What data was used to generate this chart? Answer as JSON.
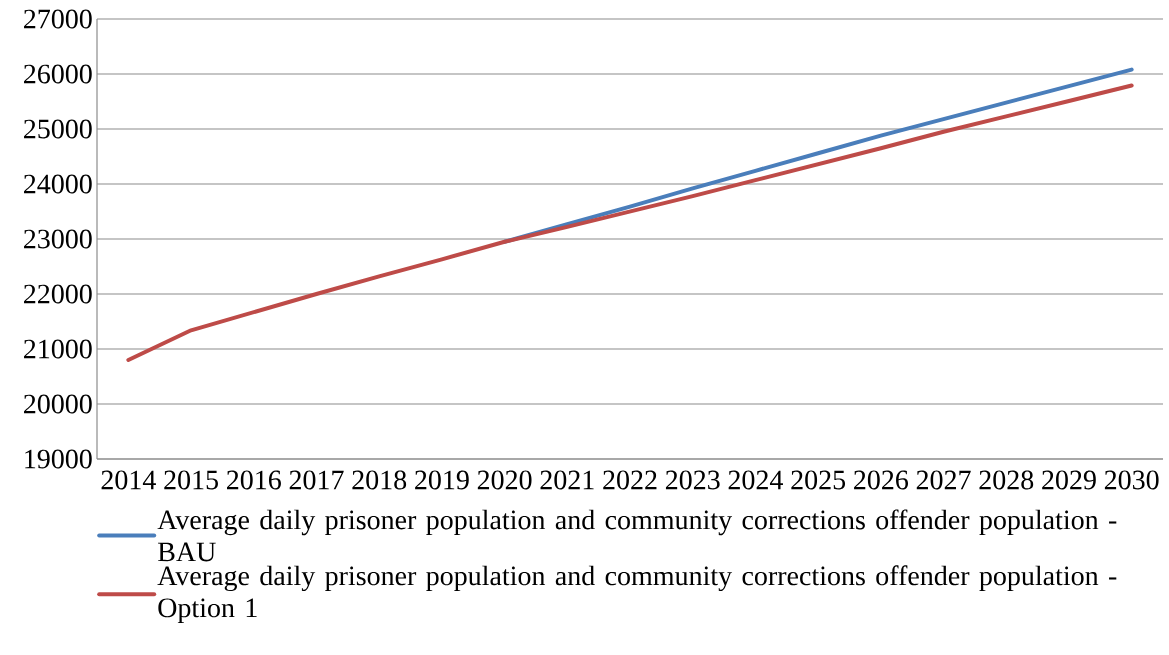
{
  "chart_data": {
    "type": "line",
    "categories": [
      "2014",
      "2015",
      "2016",
      "2017",
      "2018",
      "2019",
      "2020",
      "2021",
      "2022",
      "2023",
      "2024",
      "2025",
      "2026",
      "2027",
      "2028",
      "2029",
      "2030"
    ],
    "series": [
      {
        "name": "Average daily prisoner population and community corrections offender population - BAU",
        "color": "#4a7ebb",
        "values": [
          null,
          null,
          null,
          null,
          null,
          null,
          22950,
          23270,
          23590,
          23920,
          24240,
          24560,
          24880,
          25180,
          25480,
          25780,
          26080
        ]
      },
      {
        "name": "Average daily prisoner population and community corrections offender population - Option 1",
        "color": "#be4b48",
        "values": [
          20800,
          21340,
          21670,
          22000,
          22320,
          22630,
          22950,
          23220,
          23500,
          23780,
          24070,
          24360,
          24650,
          24950,
          25230,
          25510,
          25790
        ]
      }
    ],
    "ylim": [
      19000,
      27000
    ],
    "yticks": [
      19000,
      20000,
      21000,
      22000,
      23000,
      24000,
      25000,
      26000,
      27000
    ],
    "grid": "y",
    "legend": "bottom",
    "marker": "none",
    "line_style": "solid"
  }
}
